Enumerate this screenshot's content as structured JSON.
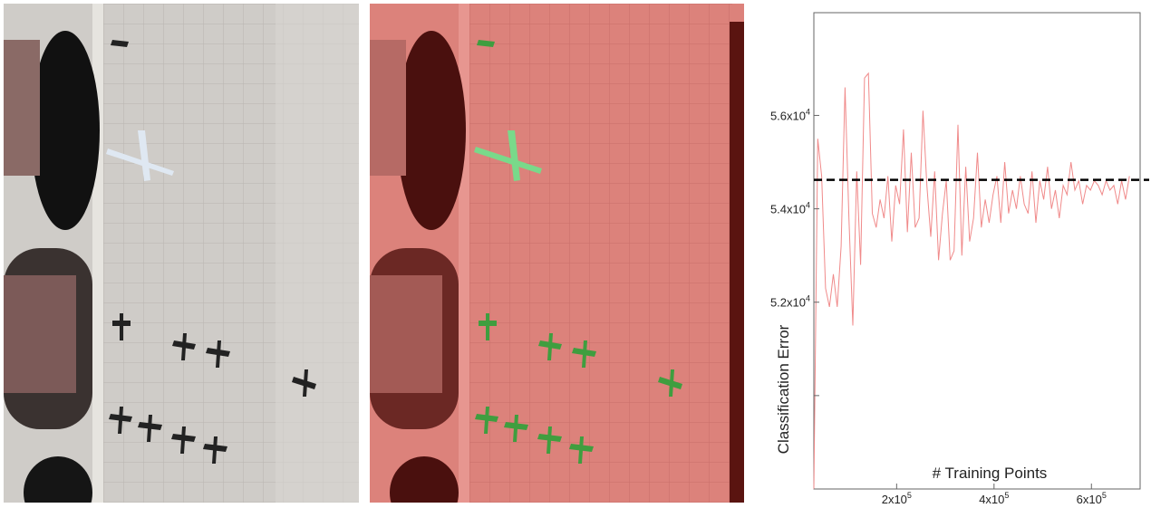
{
  "images": {
    "left": {
      "name": "satellite-image-raw"
    },
    "middle": {
      "name": "satellite-image-classified",
      "overlay_color": "#e8736b",
      "detection_color": "#3f9e3f"
    }
  },
  "chart_data": {
    "type": "line",
    "title": "",
    "xlabel": "# Training Points",
    "ylabel": "Classification Error",
    "xlim": [
      30000,
      700000
    ],
    "ylim": [
      48000,
      58200
    ],
    "x_ticks": [
      {
        "value": 200000,
        "base": "2x10",
        "exp": "5"
      },
      {
        "value": 400000,
        "base": "4x10",
        "exp": "5"
      },
      {
        "value": 600000,
        "base": "6x10",
        "exp": "5"
      }
    ],
    "y_ticks": [
      {
        "value": 52000,
        "base": "5.2x10",
        "exp": "4"
      },
      {
        "value": 54000,
        "base": "5.4x10",
        "exp": "4"
      },
      {
        "value": 56000,
        "base": "5.6x10",
        "exp": "4"
      }
    ],
    "y_minor_ticks": [
      50000,
      48000
    ],
    "reference_line": {
      "y": 54620,
      "style": "dashed",
      "color": "#000000"
    },
    "series": [
      {
        "color": "#f08a8a",
        "x": [
          30000,
          38000,
          46000,
          54000,
          62000,
          70000,
          78000,
          86000,
          94000,
          102000,
          110000,
          118000,
          126000,
          134000,
          142000,
          150000,
          158000,
          166000,
          174000,
          182000,
          190000,
          198000,
          206000,
          214000,
          222000,
          230000,
          238000,
          246000,
          254000,
          262000,
          270000,
          278000,
          286000,
          294000,
          302000,
          310000,
          318000,
          326000,
          334000,
          342000,
          350000,
          358000,
          366000,
          374000,
          382000,
          390000,
          398000,
          406000,
          414000,
          422000,
          430000,
          438000,
          446000,
          454000,
          462000,
          470000,
          478000,
          486000,
          494000,
          502000,
          510000,
          518000,
          526000,
          534000,
          542000,
          550000,
          558000,
          566000,
          574000,
          582000,
          590000,
          598000,
          606000,
          614000,
          622000,
          630000,
          638000,
          646000,
          654000,
          662000,
          670000,
          678000
        ],
        "y": [
          48000,
          55500,
          54700,
          52300,
          51900,
          52600,
          51900,
          53200,
          56600,
          53800,
          51500,
          54800,
          52800,
          56800,
          56900,
          53900,
          53600,
          54200,
          53800,
          54700,
          53300,
          54500,
          54100,
          55700,
          53500,
          55200,
          53600,
          53800,
          56100,
          54500,
          53400,
          54800,
          52900,
          53900,
          54600,
          52900,
          53100,
          55800,
          53000,
          54900,
          53300,
          53800,
          55200,
          53600,
          54200,
          53700,
          54300,
          54700,
          53700,
          55000,
          53900,
          54400,
          54000,
          54700,
          54100,
          53900,
          54800,
          53700,
          54600,
          54200,
          54900,
          54000,
          54400,
          53800,
          54500,
          54300,
          55000,
          54400,
          54600,
          54100,
          54500,
          54400,
          54600,
          54500,
          54300,
          54600,
          54400,
          54500,
          54100,
          54600,
          54200,
          54700
        ]
      }
    ]
  }
}
